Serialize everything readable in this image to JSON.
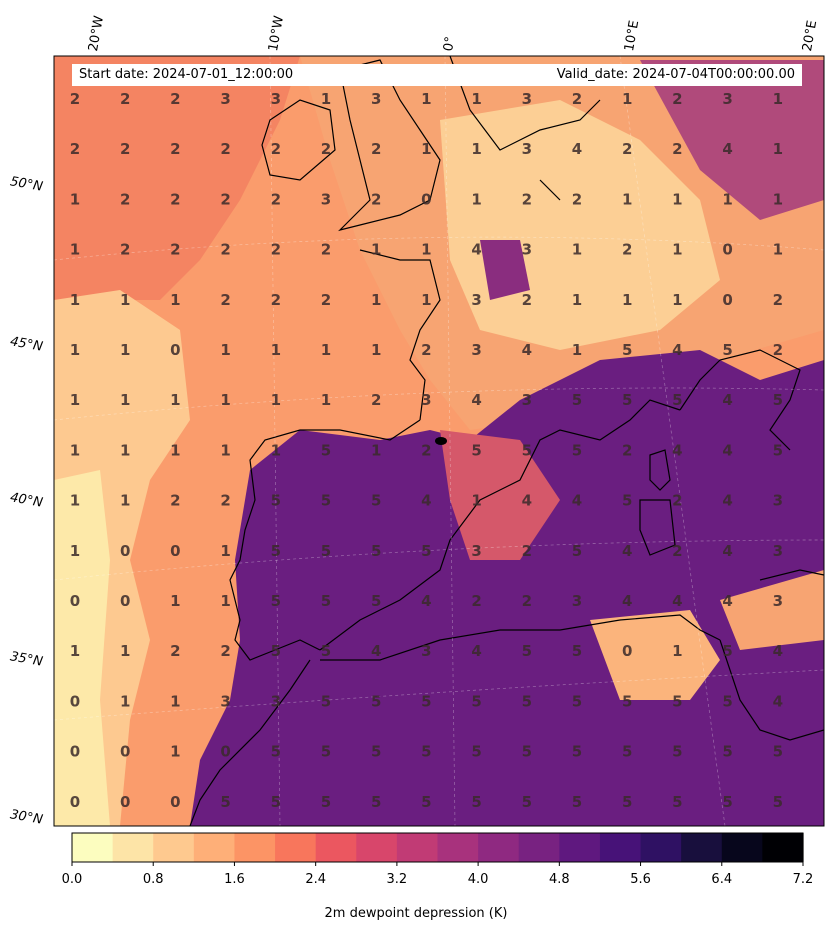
{
  "header": {
    "start_date": "Start date: 2024-07-01_12:00:00",
    "valid_date": "Valid_date: 2024-07-04T00:00:00.00"
  },
  "lon_labels": [
    "20°W",
    "10°W",
    "0°",
    "10°E",
    "20°E"
  ],
  "lat_labels": [
    "50°N",
    "45°N",
    "40°N",
    "35°N",
    "30°N"
  ],
  "colorbar": {
    "ticks": [
      "0.0",
      "0.8",
      "1.6",
      "2.4",
      "3.2",
      "4.0",
      "4.8",
      "5.6",
      "6.4",
      "7.2"
    ],
    "label": "2m dewpoint depression (K)",
    "colors": [
      "#fcfdbf",
      "#fde4a7",
      "#fec98f",
      "#feaf78",
      "#fc9465",
      "#f8765c",
      "#eb5760",
      "#d8466b",
      "#c13b75",
      "#a8327d",
      "#8f2981",
      "#782281",
      "#5f187f",
      "#471278",
      "#2f1163",
      "#180f3d",
      "#07061c",
      "#000004"
    ]
  },
  "grid_values": [
    [
      2,
      2,
      2,
      3,
      3,
      1,
      3,
      1,
      1,
      3,
      2,
      1,
      2,
      3,
      1
    ],
    [
      2,
      2,
      2,
      2,
      2,
      2,
      2,
      1,
      1,
      3,
      4,
      2,
      2,
      4,
      1
    ],
    [
      1,
      2,
      2,
      2,
      2,
      3,
      2,
      0,
      1,
      2,
      2,
      1,
      1,
      1,
      1
    ],
    [
      1,
      2,
      2,
      2,
      2,
      2,
      1,
      1,
      4,
      3,
      1,
      2,
      1,
      0,
      1
    ],
    [
      1,
      1,
      1,
      2,
      2,
      2,
      1,
      1,
      3,
      2,
      1,
      1,
      1,
      0,
      2
    ],
    [
      1,
      1,
      0,
      1,
      1,
      1,
      1,
      2,
      3,
      4,
      1,
      5,
      4,
      5,
      2
    ],
    [
      1,
      1,
      1,
      1,
      1,
      1,
      2,
      3,
      4,
      3,
      5,
      5,
      5,
      4,
      5
    ],
    [
      1,
      1,
      1,
      1,
      1,
      5,
      1,
      2,
      5,
      5,
      5,
      2,
      4,
      4,
      5
    ],
    [
      1,
      1,
      2,
      2,
      5,
      5,
      5,
      4,
      1,
      4,
      4,
      5,
      2,
      4,
      3
    ],
    [
      1,
      0,
      0,
      1,
      5,
      5,
      5,
      5,
      3,
      2,
      5,
      4,
      2,
      4,
      3
    ],
    [
      0,
      0,
      1,
      1,
      5,
      5,
      5,
      4,
      2,
      2,
      3,
      4,
      4,
      4,
      3
    ],
    [
      1,
      1,
      2,
      2,
      5,
      5,
      4,
      3,
      4,
      5,
      5,
      0,
      1,
      5,
      4
    ],
    [
      0,
      1,
      1,
      3,
      3,
      5,
      5,
      5,
      5,
      5,
      5,
      5,
      5,
      5,
      4
    ],
    [
      0,
      0,
      1,
      0,
      5,
      5,
      5,
      5,
      5,
      5,
      5,
      5,
      5,
      5,
      5
    ],
    [
      0,
      0,
      0,
      5,
      5,
      5,
      5,
      5,
      5,
      5,
      5,
      5,
      5,
      5,
      5
    ]
  ]
}
